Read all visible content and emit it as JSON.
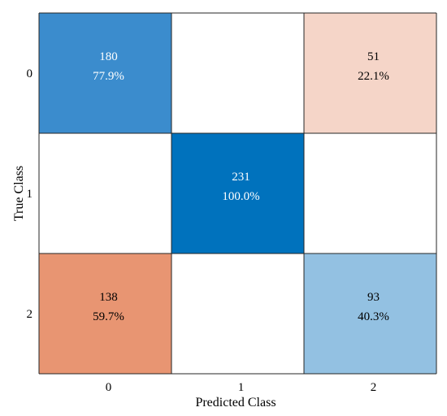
{
  "chart_data": {
    "type": "heatmap",
    "xlabel": "Predicted Class",
    "ylabel": "True Class",
    "x_categories": [
      "0",
      "1",
      "2"
    ],
    "y_categories": [
      "0",
      "1",
      "2"
    ],
    "counts": [
      [
        180,
        0,
        51
      ],
      [
        0,
        231,
        0
      ],
      [
        138,
        0,
        93
      ]
    ],
    "cells": [
      {
        "row": 0,
        "col": 0,
        "count": "180",
        "percent": "77.9%",
        "fill": "#3b8ccd",
        "text_color": "#ffffff"
      },
      {
        "row": 0,
        "col": 2,
        "count": "51",
        "percent": "22.1%",
        "fill": "#f5d5c8",
        "text_color": "#000000"
      },
      {
        "row": 1,
        "col": 1,
        "count": "231",
        "percent": "100.0%",
        "fill": "#0072bd",
        "text_color": "#ffffff"
      },
      {
        "row": 2,
        "col": 0,
        "count": "138",
        "percent": "59.7%",
        "fill": "#e89572",
        "text_color": "#000000"
      },
      {
        "row": 2,
        "col": 2,
        "count": "93",
        "percent": "40.3%",
        "fill": "#93c1e2",
        "text_color": "#000000"
      }
    ],
    "grid": true,
    "legend": "none"
  }
}
